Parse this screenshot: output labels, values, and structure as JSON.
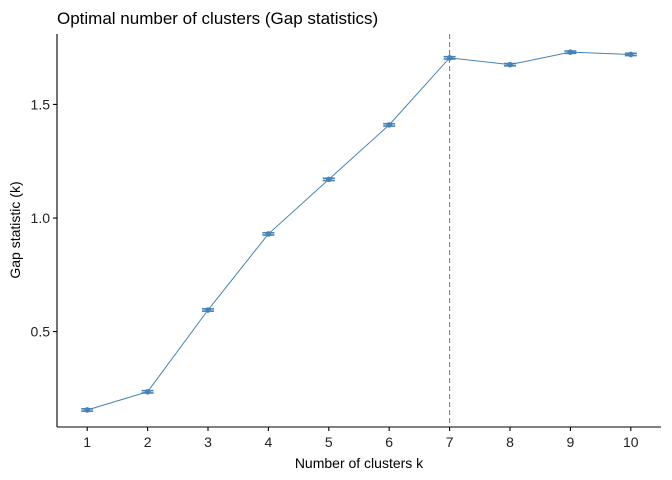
{
  "chart_data": {
    "type": "line",
    "title": "Optimal number of clusters (Gap statistics)",
    "xlabel": "Number of clusters k",
    "ylabel": "Gap statistic (k)",
    "x": [
      1,
      2,
      3,
      4,
      5,
      6,
      7,
      8,
      9,
      10
    ],
    "series": [
      {
        "values": [
          0.155,
          0.235,
          0.595,
          0.93,
          1.17,
          1.41,
          1.705,
          1.675,
          1.73,
          1.72
        ],
        "error": [
          0.005,
          0.005,
          0.005,
          0.005,
          0.005,
          0.005,
          0.005,
          0.005,
          0.005,
          0.005
        ]
      }
    ],
    "x_ticks": [
      "1",
      "2",
      "3",
      "4",
      "5",
      "6",
      "7",
      "8",
      "9",
      "10"
    ],
    "y_ticks": [
      "0.5",
      "1.0",
      "1.5"
    ],
    "y_tick_values": [
      0.5,
      1.0,
      1.5
    ],
    "xlim": [
      0.5,
      10.5
    ],
    "ylim": [
      0.08,
      1.81
    ],
    "optimal_k": 7,
    "grid": false,
    "colors": {
      "line": "#4682B4",
      "axis": "#000000"
    }
  }
}
